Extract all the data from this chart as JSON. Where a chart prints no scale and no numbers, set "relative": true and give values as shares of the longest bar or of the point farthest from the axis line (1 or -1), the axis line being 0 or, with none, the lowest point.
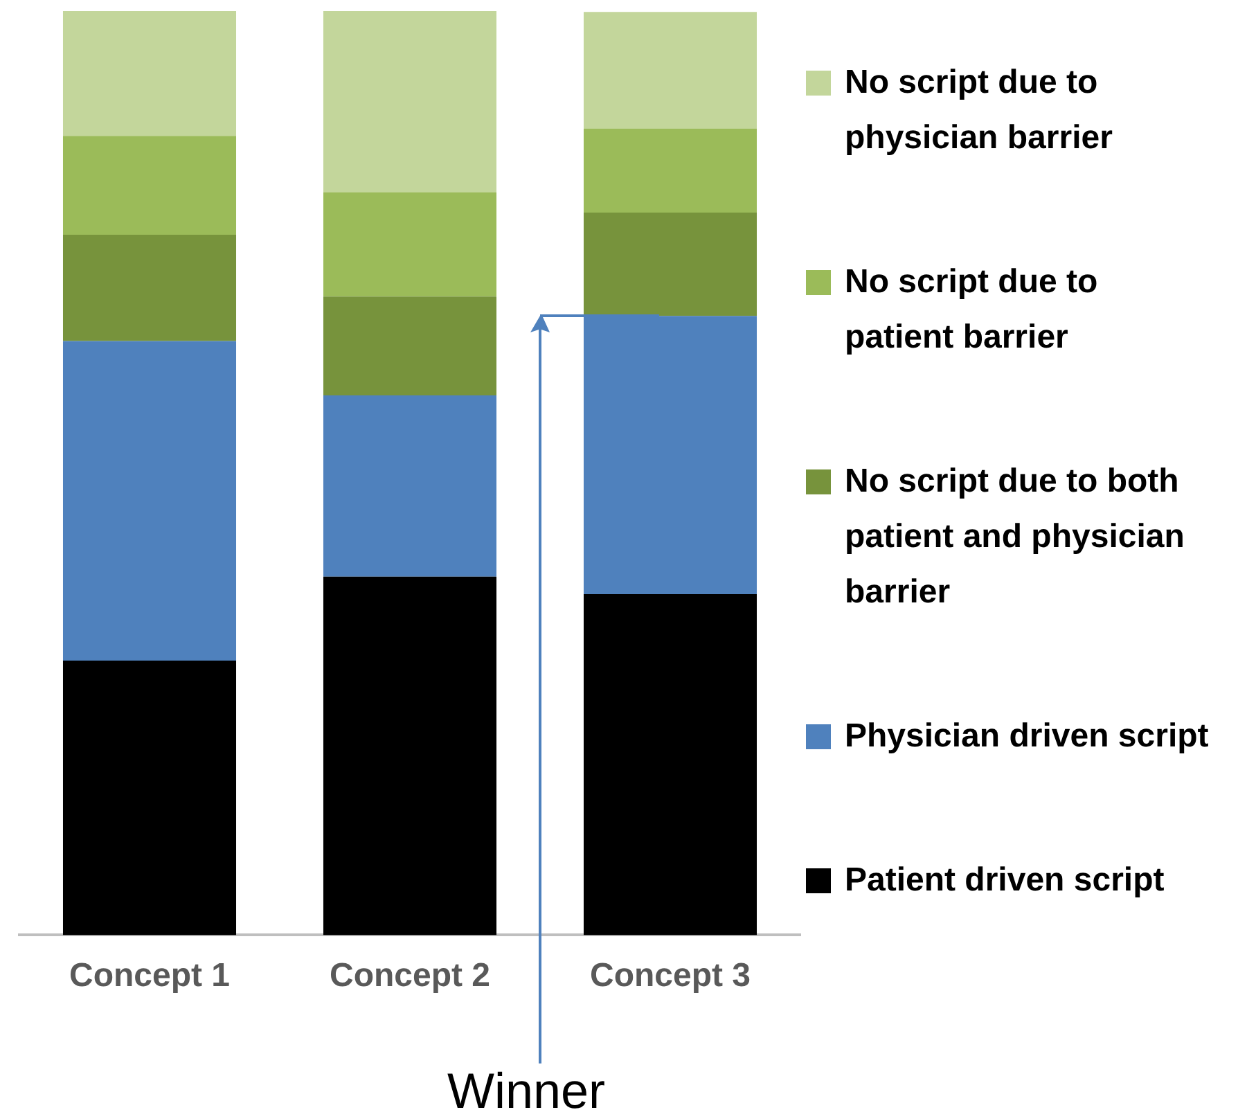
{
  "chart_data": {
    "type": "bar",
    "stacked": true,
    "relative": true,
    "legend": "right",
    "grid": false,
    "categories": [
      "Concept 1",
      "Concept 2",
      "Concept 3"
    ],
    "series": [
      {
        "name": "Patient driven script",
        "color": "#000000",
        "values": [
          0.297,
          0.388,
          0.369
        ]
      },
      {
        "name": "Physician driven script",
        "color": "#4f81bd",
        "values": [
          0.346,
          0.196,
          0.301
        ]
      },
      {
        "name": "No script due to both patient and physician barrier",
        "color": "#77933c",
        "values": [
          0.115,
          0.107,
          0.112
        ]
      },
      {
        "name": "No script due to patient barrier",
        "color": "#9bbb59",
        "values": [
          0.107,
          0.113,
          0.091
        ]
      },
      {
        "name": "No script due to physician barrier",
        "color": "#c3d69b",
        "values": [
          0.135,
          0.196,
          0.126
        ]
      }
    ],
    "annotations": [
      "Winner"
    ]
  }
}
